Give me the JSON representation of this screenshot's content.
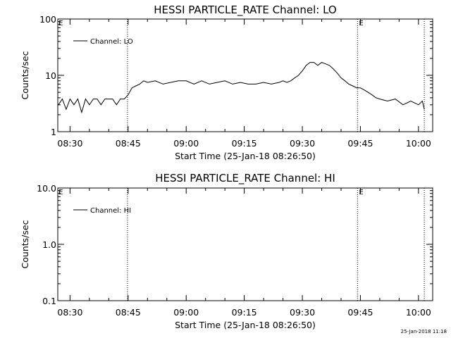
{
  "chart_data": [
    {
      "type": "line",
      "title": "HESSI PARTICLE_RATE Channel: LO",
      "xlabel": "Start Time (25-Jan-18 08:26:50)",
      "ylabel": "Counts/sec",
      "yscale": "log",
      "ylim": [
        1,
        100
      ],
      "xlim": [
        "08:26:50",
        "10:03:40"
      ],
      "x_ticks": [
        "08:30",
        "08:45",
        "09:00",
        "09:15",
        "09:30",
        "09:45",
        "10:00"
      ],
      "y_ticks": [
        "1",
        "10",
        "100"
      ],
      "legend": {
        "placement": "top-left",
        "entries": [
          "Channel: LO"
        ]
      },
      "markers": [
        {
          "time": "08:44:50",
          "label": ""
        },
        {
          "time": "09:44:15",
          "label": "E"
        },
        {
          "time": "10:01:30",
          "label": ""
        }
      ],
      "corner_marker": "E",
      "series": [
        {
          "name": "Channel: LO",
          "x": [
            "08:27:00",
            "08:28:00",
            "08:29:00",
            "08:30:00",
            "08:31:00",
            "08:32:00",
            "08:33:00",
            "08:34:00",
            "08:35:00",
            "08:36:00",
            "08:37:00",
            "08:38:00",
            "08:39:00",
            "08:40:00",
            "08:41:00",
            "08:42:00",
            "08:43:00",
            "08:44:00",
            "08:45:00",
            "08:46:00",
            "08:47:00",
            "08:48:00",
            "08:49:00",
            "08:50:00",
            "08:52:00",
            "08:54:00",
            "08:56:00",
            "08:58:00",
            "09:00:00",
            "09:02:00",
            "09:04:00",
            "09:06:00",
            "09:08:00",
            "09:10:00",
            "09:12:00",
            "09:14:00",
            "09:16:00",
            "09:18:00",
            "09:20:00",
            "09:22:00",
            "09:24:00",
            "09:25:00",
            "09:26:00",
            "09:27:00",
            "09:28:00",
            "09:29:00",
            "09:30:00",
            "09:31:00",
            "09:32:00",
            "09:33:00",
            "09:34:00",
            "09:35:00",
            "09:36:00",
            "09:37:00",
            "09:38:00",
            "09:39:00",
            "09:40:00",
            "09:41:00",
            "09:42:00",
            "09:43:00",
            "09:44:00",
            "09:45:00",
            "09:46:00",
            "09:47:00",
            "09:48:00",
            "09:49:00",
            "09:50:00",
            "09:52:00",
            "09:54:00",
            "09:56:00",
            "09:58:00",
            "10:00:00",
            "10:01:00",
            "10:01:30"
          ],
          "values": [
            3,
            3.8,
            2.5,
            3.8,
            3,
            3.8,
            2.2,
            3.8,
            3,
            3.8,
            3.8,
            3,
            3.8,
            3.8,
            3.8,
            3,
            3.8,
            3.8,
            4.5,
            6,
            6.5,
            7,
            8,
            7.5,
            8,
            7,
            7.5,
            8,
            8,
            7,
            8,
            7,
            7.5,
            8,
            7,
            7.5,
            7,
            7,
            7.5,
            7,
            7.5,
            8,
            7.5,
            8,
            9,
            10,
            12,
            15,
            17,
            17,
            15,
            17,
            16,
            15,
            13,
            11,
            9,
            8,
            7,
            6.5,
            6,
            6,
            5.5,
            5,
            4.5,
            4,
            3.8,
            3.5,
            3.8,
            3,
            3.5,
            3,
            3.5,
            2.5
          ]
        }
      ]
    },
    {
      "type": "line",
      "title": "HESSI PARTICLE_RATE Channel: HI",
      "xlabel": "Start Time (25-Jan-18 08:26:50)",
      "ylabel": "Counts/sec",
      "yscale": "log",
      "ylim": [
        0.1,
        10.0
      ],
      "xlim": [
        "08:26:50",
        "10:03:40"
      ],
      "x_ticks": [
        "08:30",
        "08:45",
        "09:00",
        "09:15",
        "09:30",
        "09:45",
        "10:00"
      ],
      "y_ticks": [
        "0.1",
        "1.0",
        "10.0"
      ],
      "legend": {
        "placement": "top-left",
        "entries": [
          "Channel: HI"
        ]
      },
      "markers": [
        {
          "time": "08:44:50",
          "label": ""
        },
        {
          "time": "09:44:15",
          "label": "E"
        },
        {
          "time": "10:01:30",
          "label": ""
        }
      ],
      "corner_marker": "E",
      "series": [
        {
          "name": "Channel: HI",
          "x": [],
          "values": []
        }
      ]
    }
  ],
  "footer": {
    "timestamp": "25-Jan-2018 11:18"
  }
}
